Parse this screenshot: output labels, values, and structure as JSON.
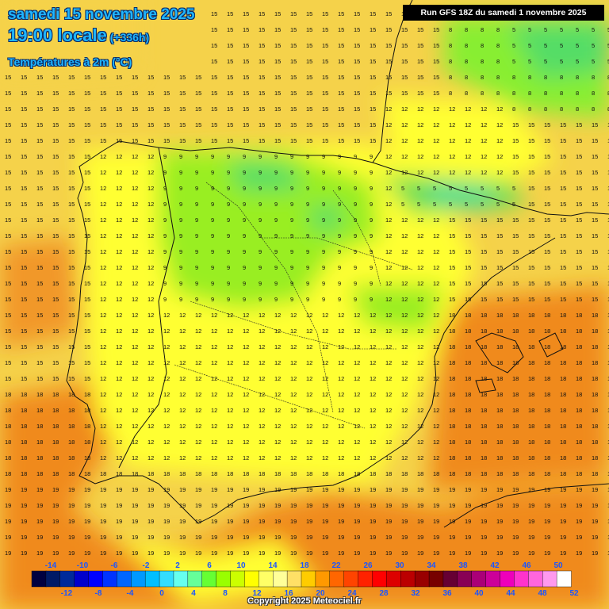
{
  "header": {
    "date": "samedi 15 novembre 2025",
    "time": "19:00 locale",
    "lead": "(+336h)",
    "variable": "Températures à 2m (°C)"
  },
  "run_label": "Run GFS 18Z du samedi 1 novembre 2025",
  "copyright": "Copyright 2025 Meteociel.fr",
  "legend": {
    "top_labels": [
      "-14",
      "-10",
      "-6",
      "-2",
      "2",
      "6",
      "10",
      "14",
      "18",
      "22",
      "26",
      "30",
      "34",
      "38",
      "42",
      "46",
      "50"
    ],
    "bottom_labels": [
      "-12",
      "-8",
      "-4",
      "0",
      "4",
      "8",
      "12",
      "16",
      "20",
      "24",
      "28",
      "32",
      "36",
      "40",
      "44",
      "48",
      "52"
    ],
    "colors": [
      "#000040",
      "#001a66",
      "#002a9a",
      "#0000cc",
      "#0000ff",
      "#0033ff",
      "#0066ff",
      "#0099ff",
      "#00bfff",
      "#33ddff",
      "#66ffee",
      "#66ff99",
      "#66ff33",
      "#99ff00",
      "#ccff00",
      "#ffff00",
      "#ffff66",
      "#ffff99",
      "#ffe066",
      "#ffcc00",
      "#ff9900",
      "#ff6600",
      "#ff4400",
      "#ff2200",
      "#ff0000",
      "#dd0000",
      "#bb0000",
      "#990000",
      "#770000",
      "#660033",
      "#880055",
      "#aa0077",
      "#cc0099",
      "#ee00bb",
      "#ff33cc",
      "#ff66dd",
      "#ff99ee",
      "#ffffff"
    ]
  },
  "colors": {
    "title": "#1fb6ff",
    "warm": "#f08a1f",
    "mild": "#f5d24a",
    "cool": "#ffff00",
    "cold": "#88ee33",
    "coldest": "#44dd77"
  }
}
